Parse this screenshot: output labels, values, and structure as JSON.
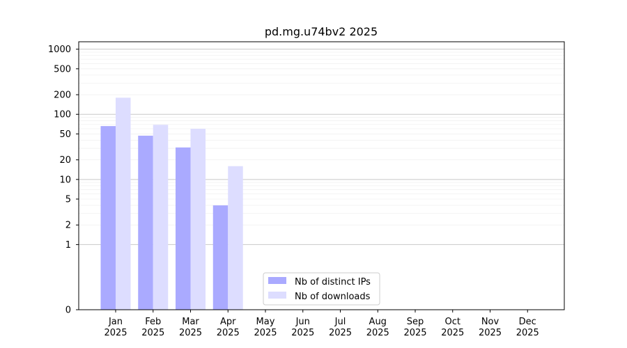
{
  "chart_data": {
    "type": "bar",
    "title": "pd.mg.u74bv2 2025",
    "xlabel": "",
    "ylabel": "",
    "y_scale": "symlog",
    "ylim": [
      0,
      1300
    ],
    "y_ticks": [
      0,
      1,
      2,
      5,
      10,
      20,
      50,
      100,
      200,
      500,
      1000
    ],
    "y_tick_labels": [
      "0",
      "1",
      "2",
      "5",
      "10",
      "20",
      "50",
      "100",
      "200",
      "500",
      "1000"
    ],
    "categories": [
      {
        "month": "Jan",
        "year": "2025"
      },
      {
        "month": "Feb",
        "year": "2025"
      },
      {
        "month": "Mar",
        "year": "2025"
      },
      {
        "month": "Apr",
        "year": "2025"
      },
      {
        "month": "May",
        "year": "2025"
      },
      {
        "month": "Jun",
        "year": "2025"
      },
      {
        "month": "Jul",
        "year": "2025"
      },
      {
        "month": "Aug",
        "year": "2025"
      },
      {
        "month": "Sep",
        "year": "2025"
      },
      {
        "month": "Oct",
        "year": "2025"
      },
      {
        "month": "Nov",
        "year": "2025"
      },
      {
        "month": "Dec",
        "year": "2025"
      }
    ],
    "series": [
      {
        "name": "Nb of distinct IPs",
        "color": "#aaaaff",
        "values": [
          66,
          47,
          31,
          4,
          0,
          0,
          0,
          0,
          0,
          0,
          0,
          0
        ]
      },
      {
        "name": "Nb of downloads",
        "color": "#ddddff",
        "values": [
          180,
          69,
          60,
          16,
          0,
          0,
          0,
          0,
          0,
          0,
          0,
          0
        ]
      }
    ],
    "grid": "horizontal",
    "legend_position": "lower-center"
  }
}
